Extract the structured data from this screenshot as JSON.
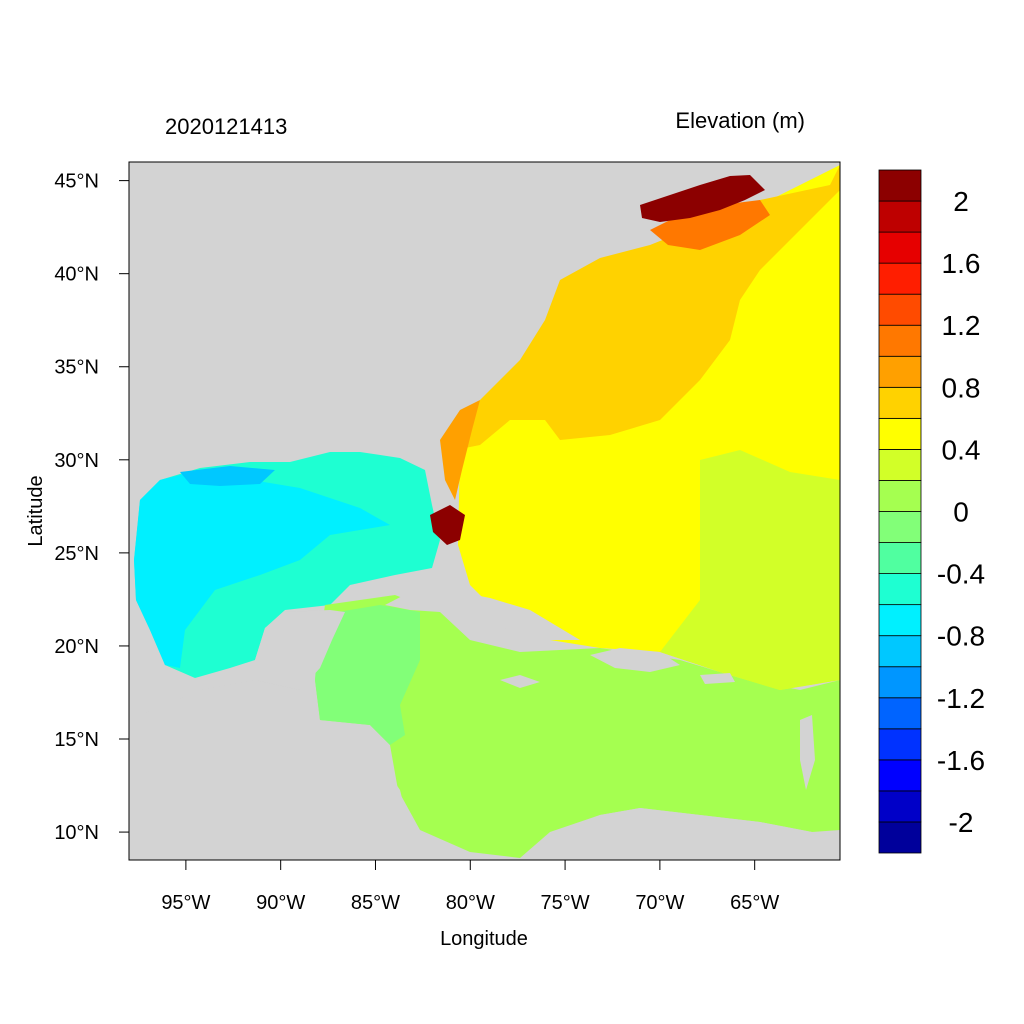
{
  "map": {
    "left_title": "2020121413",
    "right_title": "Elevation (m)",
    "xlabel": "Longitude",
    "ylabel": "Latitude",
    "lon_range": [
      -98.0,
      -60.5
    ],
    "lat_range": [
      8.5,
      46.0
    ],
    "land_color": "#d3d3d3",
    "lon_ticks": [
      {
        "value": -95,
        "label": "95°W"
      },
      {
        "value": -90,
        "label": "90°W"
      },
      {
        "value": -85,
        "label": "85°W"
      },
      {
        "value": -80,
        "label": "80°W"
      },
      {
        "value": -75,
        "label": "75°W"
      },
      {
        "value": -70,
        "label": "70°W"
      },
      {
        "value": -65,
        "label": "65°W"
      }
    ],
    "lat_ticks": [
      {
        "value": 45,
        "label": "45°N"
      },
      {
        "value": 40,
        "label": "40°N"
      },
      {
        "value": 35,
        "label": "35°N"
      },
      {
        "value": 30,
        "label": "30°N"
      },
      {
        "value": 25,
        "label": "25°N"
      },
      {
        "value": 20,
        "label": "20°N"
      },
      {
        "value": 15,
        "label": "15°N"
      },
      {
        "value": 10,
        "label": "10°N"
      }
    ]
  },
  "colorbar": {
    "colors": [
      "#00009b",
      "#0000c8",
      "#0000ff",
      "#0032ff",
      "#0064ff",
      "#0096ff",
      "#00c8ff",
      "#00f0ff",
      "#1effd2",
      "#50ffa0",
      "#82ff78",
      "#a5ff50",
      "#d2ff28",
      "#ffff00",
      "#ffd200",
      "#ffa000",
      "#ff7800",
      "#ff4b00",
      "#ff1e00",
      "#e60000",
      "#be0000",
      "#8c0000"
    ],
    "labels": [
      {
        "text": "-2",
        "at": -2.0
      },
      {
        "text": "-1.6",
        "at": -1.6
      },
      {
        "text": "-1.2",
        "at": -1.2
      },
      {
        "text": "-0.8",
        "at": -0.8
      },
      {
        "text": "-0.4",
        "at": -0.4
      },
      {
        "text": "0",
        "at": 0.0
      },
      {
        "text": "0.4",
        "at": 0.4
      },
      {
        "text": "0.8",
        "at": 0.8
      },
      {
        "text": "1.2",
        "at": 1.2
      },
      {
        "text": "1.6",
        "at": 1.6
      },
      {
        "text": "2",
        "at": 2.0
      }
    ]
  }
}
